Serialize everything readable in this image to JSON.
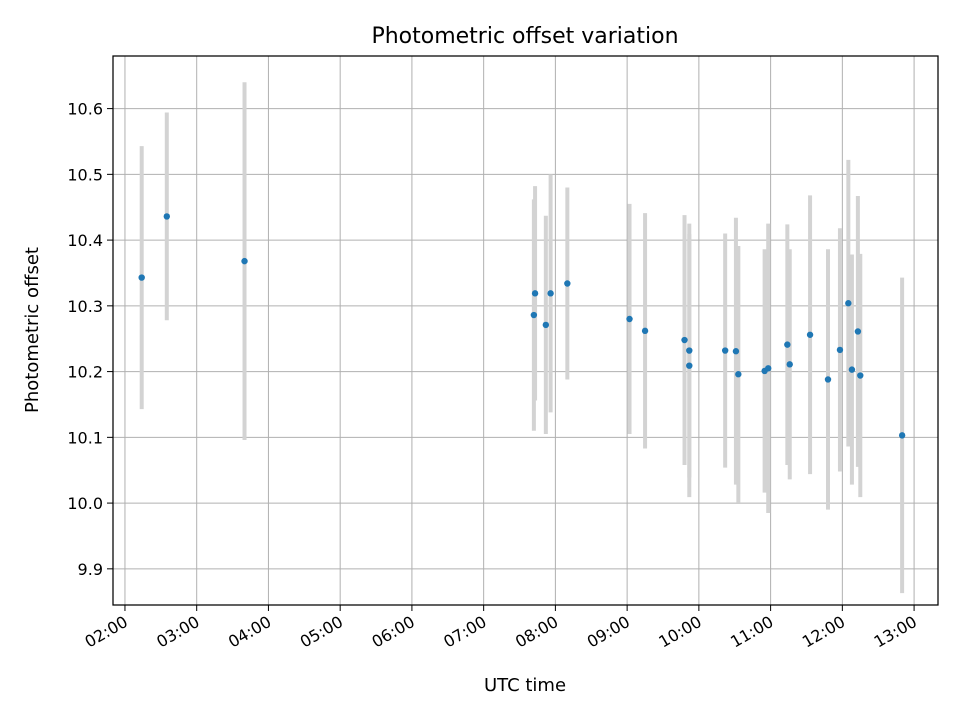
{
  "chart_data": {
    "type": "scatter",
    "title": "Photometric offset variation",
    "xlabel": "UTC time",
    "ylabel": "Photometric offset",
    "x_ticks": [
      "02:00",
      "03:00",
      "04:00",
      "05:00",
      "06:00",
      "07:00",
      "08:00",
      "09:00",
      "10:00",
      "11:00",
      "12:00",
      "13:00"
    ],
    "y_ticks": [
      "9.9",
      "10.0",
      "10.1",
      "10.2",
      "10.3",
      "10.4",
      "10.5",
      "10.6"
    ],
    "xlim": [
      "01:50",
      "13:20"
    ],
    "ylim": [
      9.845,
      10.68
    ],
    "grid": true,
    "legend": "none",
    "point_color": "#1f77b4",
    "errorbar_color": "#d3d3d3",
    "points": [
      {
        "x": "02:14",
        "y": 10.343,
        "err": 0.2
      },
      {
        "x": "02:35",
        "y": 10.436,
        "err": 0.158
      },
      {
        "x": "03:40",
        "y": 10.368,
        "err": 0.272
      },
      {
        "x": "07:42",
        "y": 10.286,
        "err": 0.176
      },
      {
        "x": "07:43",
        "y": 10.319,
        "err": 0.163
      },
      {
        "x": "07:52",
        "y": 10.271,
        "err": 0.166
      },
      {
        "x": "07:56",
        "y": 10.319,
        "err": 0.181
      },
      {
        "x": "08:10",
        "y": 10.334,
        "err": 0.146
      },
      {
        "x": "09:02",
        "y": 10.28,
        "err": 0.175
      },
      {
        "x": "09:15",
        "y": 10.262,
        "err": 0.179
      },
      {
        "x": "09:48",
        "y": 10.248,
        "err": 0.19
      },
      {
        "x": "09:52",
        "y": 10.232,
        "err": 0.193
      },
      {
        "x": "09:52",
        "y": 10.209,
        "err": 0.2
      },
      {
        "x": "10:22",
        "y": 10.232,
        "err": 0.178
      },
      {
        "x": "10:31",
        "y": 10.231,
        "err": 0.203
      },
      {
        "x": "10:33",
        "y": 10.196,
        "err": 0.195
      },
      {
        "x": "10:55",
        "y": 10.201,
        "err": 0.185
      },
      {
        "x": "10:58",
        "y": 10.205,
        "err": 0.22
      },
      {
        "x": "11:14",
        "y": 10.241,
        "err": 0.183
      },
      {
        "x": "11:16",
        "y": 10.211,
        "err": 0.175
      },
      {
        "x": "11:33",
        "y": 10.256,
        "err": 0.212
      },
      {
        "x": "11:48",
        "y": 10.188,
        "err": 0.198
      },
      {
        "x": "11:58",
        "y": 10.233,
        "err": 0.185
      },
      {
        "x": "12:05",
        "y": 10.304,
        "err": 0.218
      },
      {
        "x": "12:08",
        "y": 10.203,
        "err": 0.175
      },
      {
        "x": "12:13",
        "y": 10.261,
        "err": 0.206
      },
      {
        "x": "12:15",
        "y": 10.194,
        "err": 0.185
      },
      {
        "x": "12:50",
        "y": 10.103,
        "err": 0.24
      }
    ]
  }
}
